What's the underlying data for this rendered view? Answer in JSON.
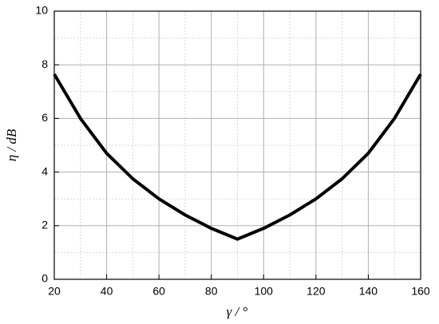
{
  "chart_data": {
    "type": "line",
    "x_label": "γ / °",
    "y_label": "η / dB",
    "x": [
      20,
      30,
      40,
      50,
      60,
      70,
      80,
      90,
      100,
      110,
      120,
      130,
      140,
      150,
      160
    ],
    "series": [
      {
        "name": "η",
        "color": "#000000",
        "values": [
          7.65,
          6.0,
          4.7,
          3.75,
          3.0,
          2.4,
          1.9,
          1.5,
          1.9,
          2.4,
          3.0,
          3.75,
          4.7,
          6.0,
          7.65
        ]
      }
    ],
    "xlim": [
      20,
      160
    ],
    "xticks": [
      20,
      40,
      60,
      80,
      100,
      120,
      140,
      160
    ],
    "ylim": [
      0,
      10
    ],
    "yticks": [
      0,
      2,
      4,
      6,
      8,
      10
    ],
    "grid": true,
    "minor_grid": true
  }
}
